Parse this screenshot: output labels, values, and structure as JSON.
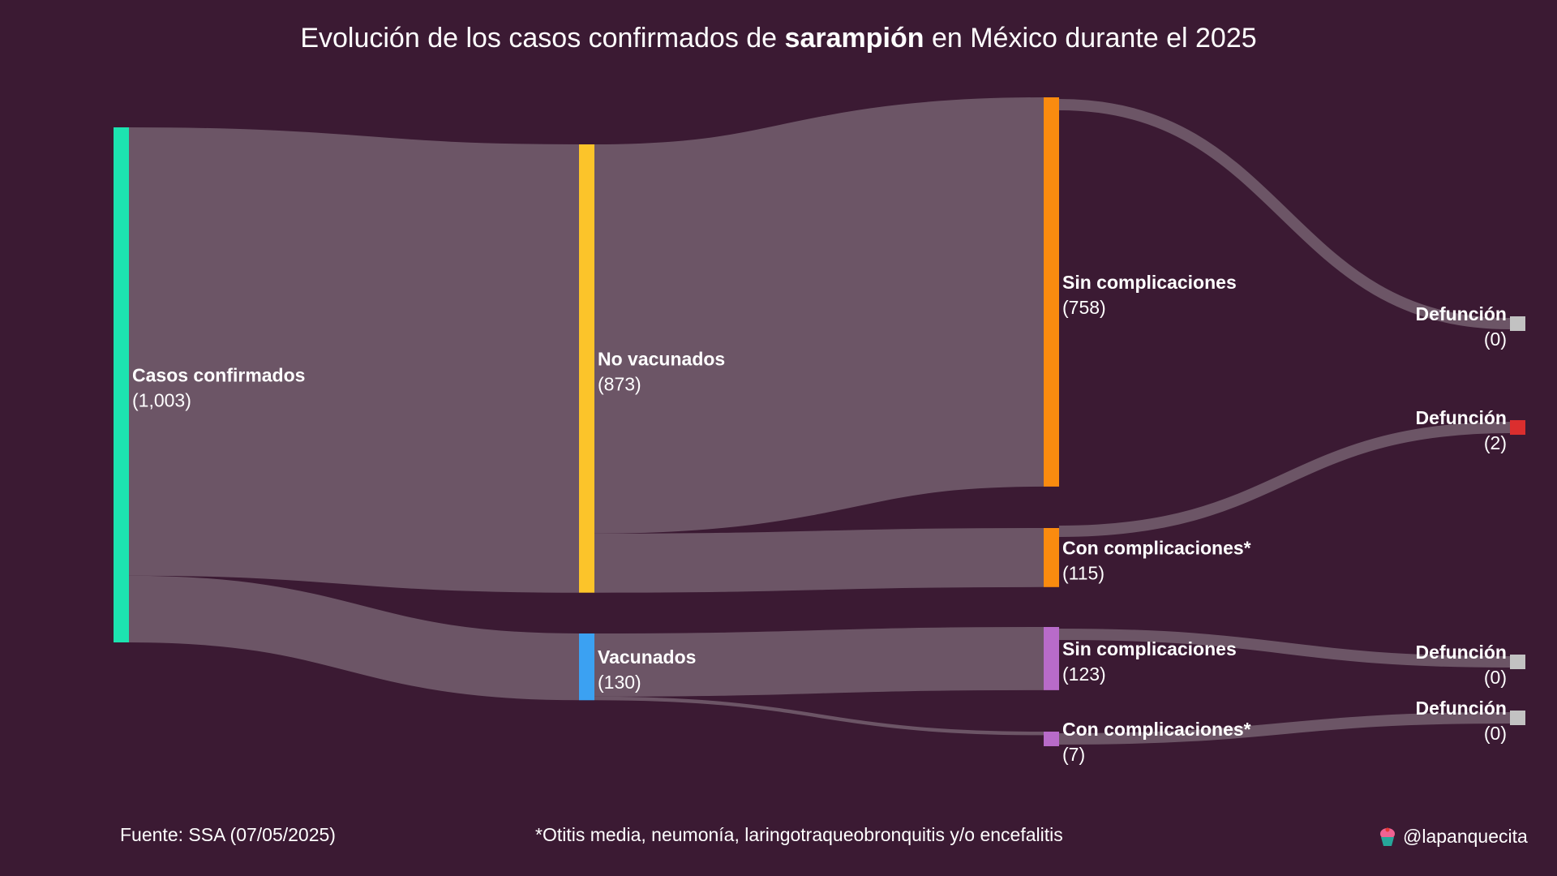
{
  "title": {
    "before": "Evolución de los casos confirmados de ",
    "bold": "sarampión",
    "after": " en México durante el 2025"
  },
  "chart_data": {
    "type": "sankey",
    "nodes": [
      {
        "id": "casos",
        "name": "Casos confirmados",
        "value_label": "(1,003)",
        "value": 1003,
        "color": "#1de3b0"
      },
      {
        "id": "novac",
        "name": "No vacunados",
        "value_label": "(873)",
        "value": 873,
        "color": "#fcc42a"
      },
      {
        "id": "vac",
        "name": "Vacunados",
        "value_label": "(130)",
        "value": 130,
        "color": "#3ba1f2"
      },
      {
        "id": "nv_sin",
        "name": "Sin complicaciones",
        "value_label": "(758)",
        "value": 758,
        "color": "#fa8b0f"
      },
      {
        "id": "nv_con",
        "name": "Con complicaciones*",
        "value_label": "(115)",
        "value": 115,
        "color": "#fa8b0f"
      },
      {
        "id": "v_sin",
        "name": "Sin complicaciones",
        "value_label": "(123)",
        "value": 123,
        "color": "#b86bc9"
      },
      {
        "id": "v_con",
        "name": "Con complicaciones*",
        "value_label": "(7)",
        "value": 7,
        "color": "#b86bc9"
      },
      {
        "id": "def1",
        "name": "Defunción",
        "value_label": "(0)",
        "value": 0,
        "color": "#c2c2c2"
      },
      {
        "id": "def2",
        "name": "Defunción",
        "value_label": "(2)",
        "value": 2,
        "color": "#db2e2e"
      },
      {
        "id": "def3",
        "name": "Defunción",
        "value_label": "(0)",
        "value": 0,
        "color": "#c2c2c2"
      },
      {
        "id": "def4",
        "name": "Defunción",
        "value_label": "(0)",
        "value": 0,
        "color": "#c2c2c2"
      }
    ],
    "links": [
      {
        "source": "casos",
        "target": "novac",
        "value": 873
      },
      {
        "source": "casos",
        "target": "vac",
        "value": 130
      },
      {
        "source": "novac",
        "target": "nv_sin",
        "value": 758
      },
      {
        "source": "novac",
        "target": "nv_con",
        "value": 115
      },
      {
        "source": "vac",
        "target": "v_sin",
        "value": 123
      },
      {
        "source": "vac",
        "target": "v_con",
        "value": 7
      },
      {
        "source": "nv_sin",
        "target": "def1",
        "value": 0
      },
      {
        "source": "nv_con",
        "target": "def2",
        "value": 2
      },
      {
        "source": "v_sin",
        "target": "def3",
        "value": 0
      },
      {
        "source": "v_con",
        "target": "def4",
        "value": 0
      }
    ],
    "link_color": "#6c5566"
  },
  "footer": {
    "source": "Fuente: SSA (07/05/2025)",
    "footnote": "*Otitis media, neumonía, laringotraqueobronquitis y/o encefalitis",
    "credit": "@lapanquecita",
    "credit_icon": "cupcake-icon"
  }
}
